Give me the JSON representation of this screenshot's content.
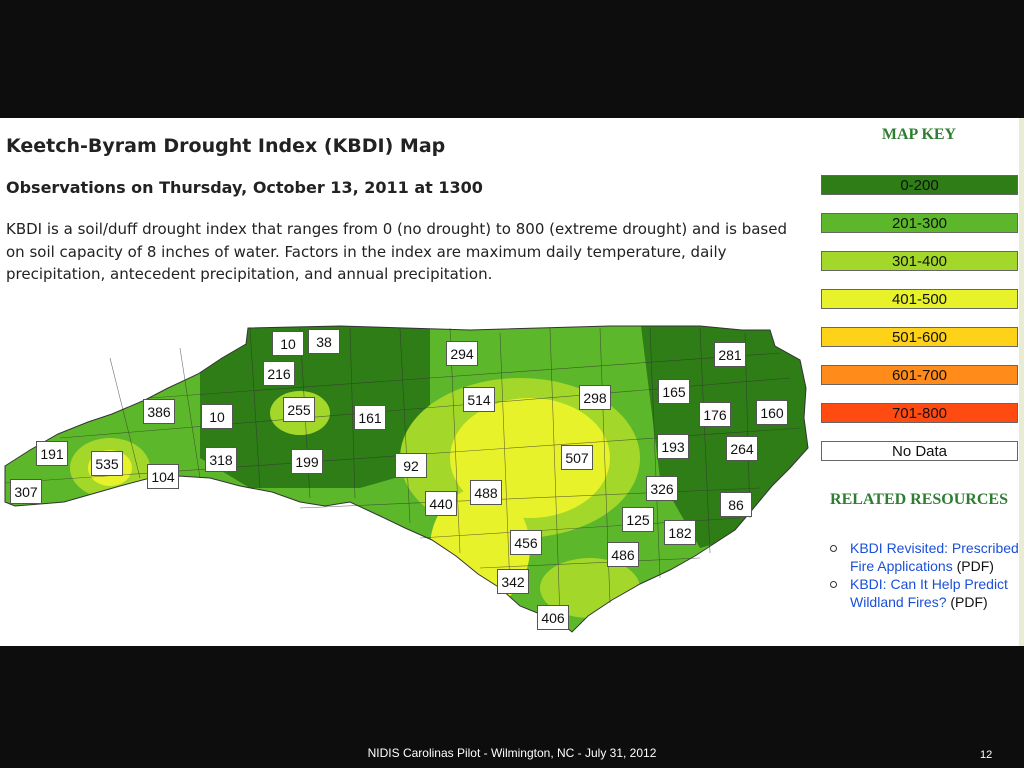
{
  "map": {
    "title": "Keetch-Byram Drought Index (KBDI) Map",
    "subtitle": "Observations on Thursday, October 13, 2011 at 1300",
    "description": "KBDI is a soil/duff drought index that ranges from 0 (no drought) to 800 (extreme drought) and is based on soil capacity of 8 inches of water. Factors in the index are maximum daily temperature, daily precipitation, antecedent precipitation, and annual precipitation.",
    "labels": [
      "10",
      "38",
      "216",
      "386",
      "10",
      "255",
      "161",
      "294",
      "514",
      "298",
      "281",
      "165",
      "176",
      "160",
      "191",
      "535",
      "104",
      "318",
      "199",
      "92",
      "507",
      "193",
      "264",
      "307",
      "440",
      "488",
      "326",
      "86",
      "125",
      "182",
      "456",
      "486",
      "342",
      "406"
    ]
  },
  "legend": {
    "title": "MAP KEY",
    "items": [
      {
        "label": "0-200",
        "color": "#2e7d17"
      },
      {
        "label": "201-300",
        "color": "#5cb82a"
      },
      {
        "label": "301-400",
        "color": "#a3d82b"
      },
      {
        "label": "401-500",
        "color": "#e8f22a"
      },
      {
        "label": "501-600",
        "color": "#ffd21a"
      },
      {
        "label": "601-700",
        "color": "#ff8c1a"
      },
      {
        "label": "701-800",
        "color": "#ff4a12"
      },
      {
        "label": "No Data",
        "color": "#ffffff"
      }
    ]
  },
  "resources": {
    "title": "RELATED RESOURCES",
    "items": [
      {
        "link": "KBDI Revisited: Prescribed Fire Applications",
        "suffix": " (PDF)"
      },
      {
        "link": "KBDI: Can It Help Predict Wildland Fires?",
        "suffix": " (PDF)"
      }
    ]
  },
  "footer": {
    "text": "NIDIS Carolinas Pilot - Wilmington, NC - July 31, 2012",
    "page_number": "12"
  }
}
